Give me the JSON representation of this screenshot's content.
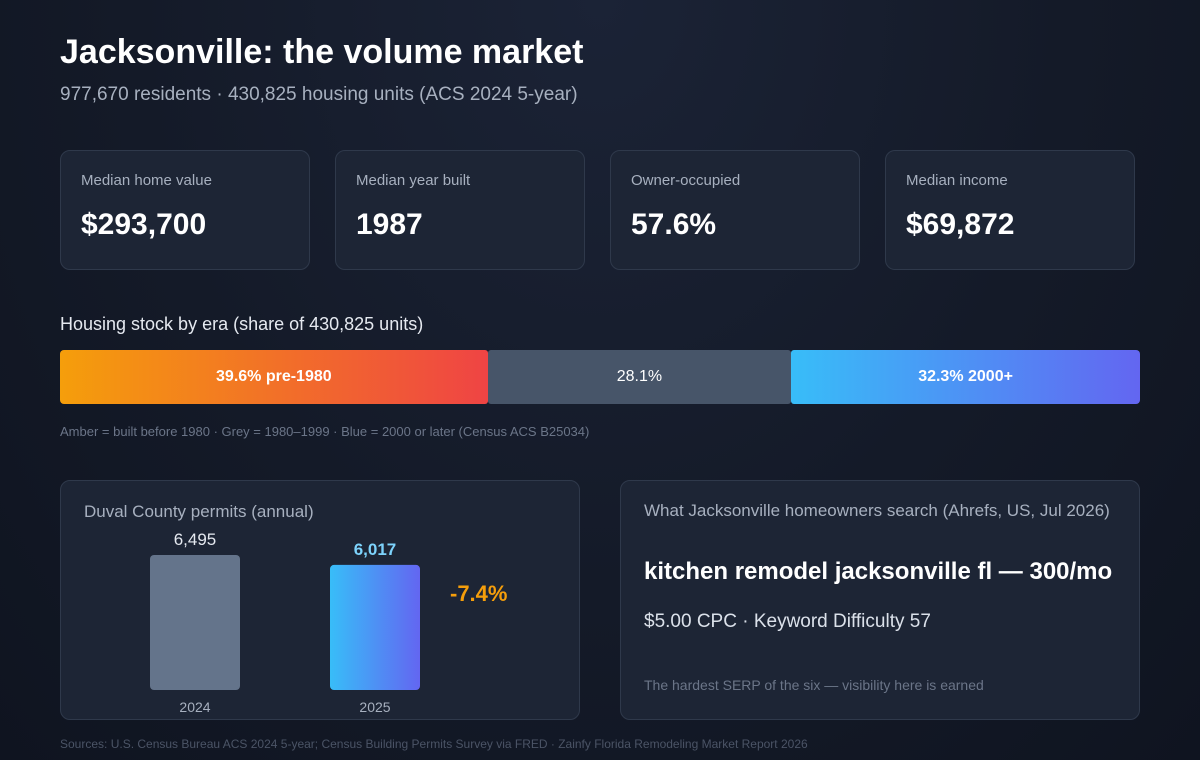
{
  "header": {
    "title": "Jacksonville: the volume market",
    "subtitle": "977,670 residents · 430,825 housing units (ACS 2024 5-year)"
  },
  "stats": [
    {
      "label": "Median home value",
      "value": "$293,700"
    },
    {
      "label": "Median year built",
      "value": "1987"
    },
    {
      "label": "Owner-occupied",
      "value": "57.6%"
    },
    {
      "label": "Median income",
      "value": "$69,872"
    }
  ],
  "housing_stock": {
    "heading": "Housing stock by era (share of 430,825 units)",
    "segments": [
      {
        "label": "39.6% pre-1980",
        "share": 39.6
      },
      {
        "label": "28.1%",
        "share": 28.1
      },
      {
        "label": "32.3% 2000+",
        "share": 32.3
      }
    ],
    "note": "Amber = built before 1980 · Grey = 1980–1999 · Blue = 2000 or later (Census ACS B25034)"
  },
  "chart_data": {
    "type": "bar",
    "title": "Duval County permits (annual)",
    "categories": [
      "2024",
      "2025"
    ],
    "values": [
      6495,
      6017
    ],
    "value_labels": [
      "6,495",
      "6,017"
    ],
    "ylim": [
      0,
      6495
    ],
    "change_label": "-7.4%",
    "colors": {
      "bar_2024": "#64748b",
      "bar_2025_start": "#38bdf8",
      "bar_2025_end": "#6366f1",
      "change": "#f59e0b"
    }
  },
  "search": {
    "title": "What Jacksonville homeowners search (Ahrefs, US, Jul 2026)",
    "keyword": "kitchen remodel jacksonville fl — 300/mo",
    "metrics": "$5.00 CPC · Keyword Difficulty 57",
    "note": "The hardest SERP of the six — visibility here is earned"
  },
  "footer": {
    "sources": "Sources: U.S. Census Bureau ACS 2024 5-year; Census Building Permits Survey via FRED · Zainfy Florida Remodeling Market Report 2026"
  }
}
